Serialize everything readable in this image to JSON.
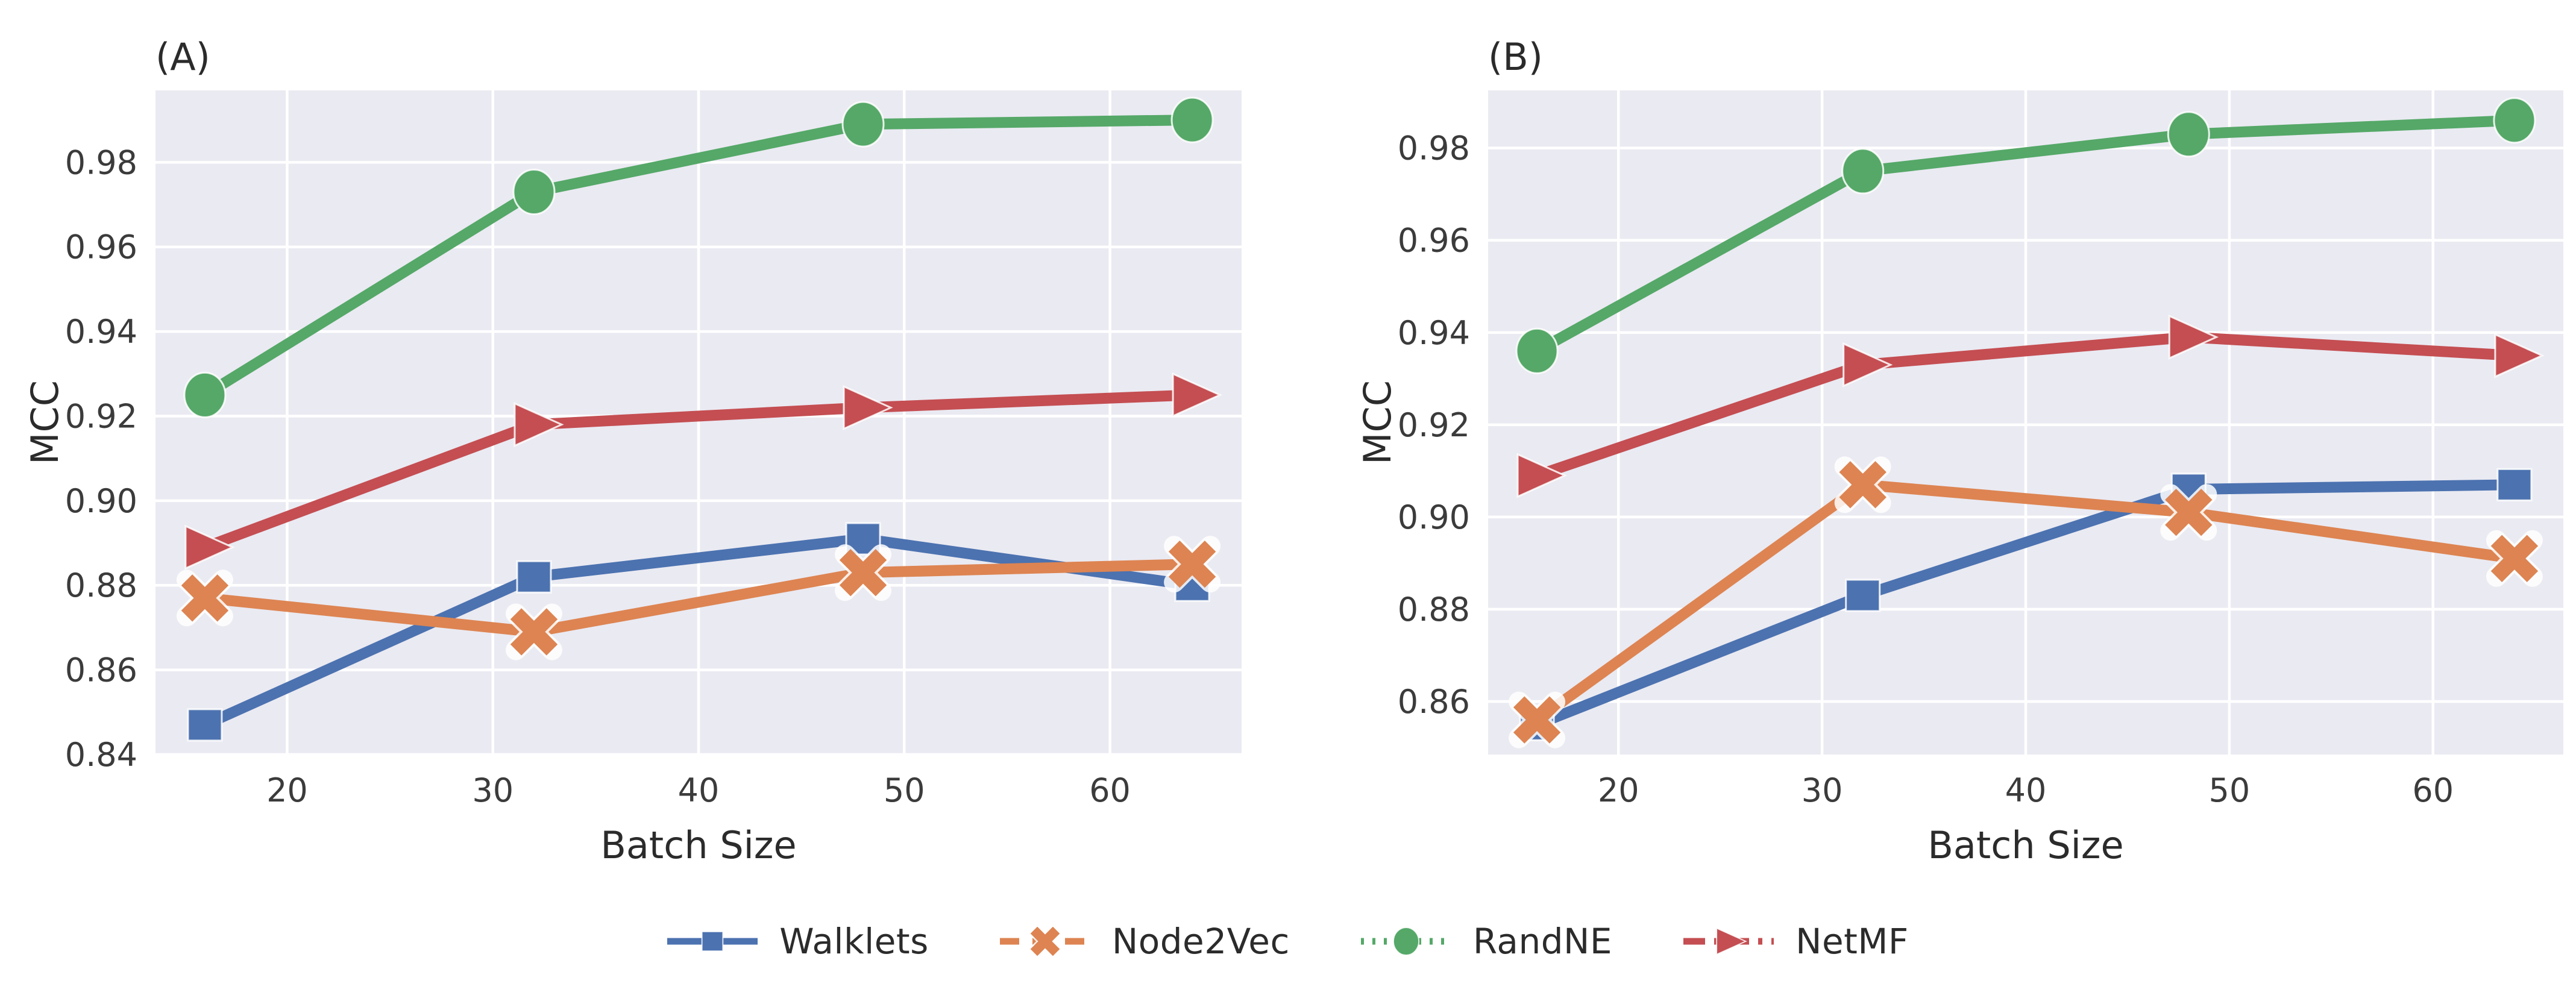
{
  "figure": {
    "background": "#ffffff",
    "axes_background": "#eaeaf2",
    "grid_color": "#ffffff",
    "tick_color": "#3b3b3b",
    "label_color": "#2b2b2b"
  },
  "chart_data": [
    {
      "type": "line",
      "panel_label": "(A)",
      "xlabel": "Batch Size",
      "ylabel": "MCC",
      "grid": true,
      "x": [
        16,
        32,
        48,
        64
      ],
      "xticks": [
        20,
        30,
        40,
        50,
        60
      ],
      "yticks": [
        0.84,
        0.86,
        0.88,
        0.9,
        0.92,
        0.94,
        0.96,
        0.98
      ],
      "xlim": [
        13.6,
        66.4
      ],
      "ylim": [
        0.84,
        0.997
      ],
      "series": [
        {
          "name": "Walklets",
          "color": "#4c72b0",
          "marker": "square",
          "legend_linestyle": "solid",
          "values": [
            0.847,
            0.882,
            0.891,
            0.88
          ]
        },
        {
          "name": "Node2Vec",
          "color": "#dd8452",
          "marker": "x",
          "legend_linestyle": "dashed",
          "values": [
            0.877,
            0.869,
            0.883,
            0.885
          ]
        },
        {
          "name": "RandNE",
          "color": "#55a868",
          "marker": "circle",
          "legend_linestyle": "dotted",
          "values": [
            0.925,
            0.973,
            0.989,
            0.99
          ]
        },
        {
          "name": "NetMF",
          "color": "#c44e52",
          "marker": "triangle-right",
          "legend_linestyle": "dashdot",
          "values": [
            0.889,
            0.918,
            0.922,
            0.925
          ]
        }
      ]
    },
    {
      "type": "line",
      "panel_label": "(B)",
      "xlabel": "Batch Size",
      "ylabel": "MCC",
      "grid": true,
      "x": [
        16,
        32,
        48,
        64
      ],
      "xticks": [
        20,
        30,
        40,
        50,
        60
      ],
      "yticks": [
        0.86,
        0.88,
        0.9,
        0.92,
        0.94,
        0.96,
        0.98
      ],
      "xlim": [
        13.6,
        66.4
      ],
      "ylim": [
        0.8485,
        0.9925
      ],
      "series": [
        {
          "name": "Walklets",
          "color": "#4c72b0",
          "marker": "square",
          "legend_linestyle": "solid",
          "values": [
            0.855,
            0.883,
            0.906,
            0.907
          ]
        },
        {
          "name": "Node2Vec",
          "color": "#dd8452",
          "marker": "x",
          "legend_linestyle": "dashed",
          "values": [
            0.856,
            0.907,
            0.901,
            0.891
          ]
        },
        {
          "name": "RandNE",
          "color": "#55a868",
          "marker": "circle",
          "legend_linestyle": "dotted",
          "values": [
            0.936,
            0.975,
            0.983,
            0.986
          ]
        },
        {
          "name": "NetMF",
          "color": "#c44e52",
          "marker": "triangle-right",
          "legend_linestyle": "dashdot",
          "values": [
            0.909,
            0.933,
            0.939,
            0.935
          ]
        }
      ]
    }
  ]
}
